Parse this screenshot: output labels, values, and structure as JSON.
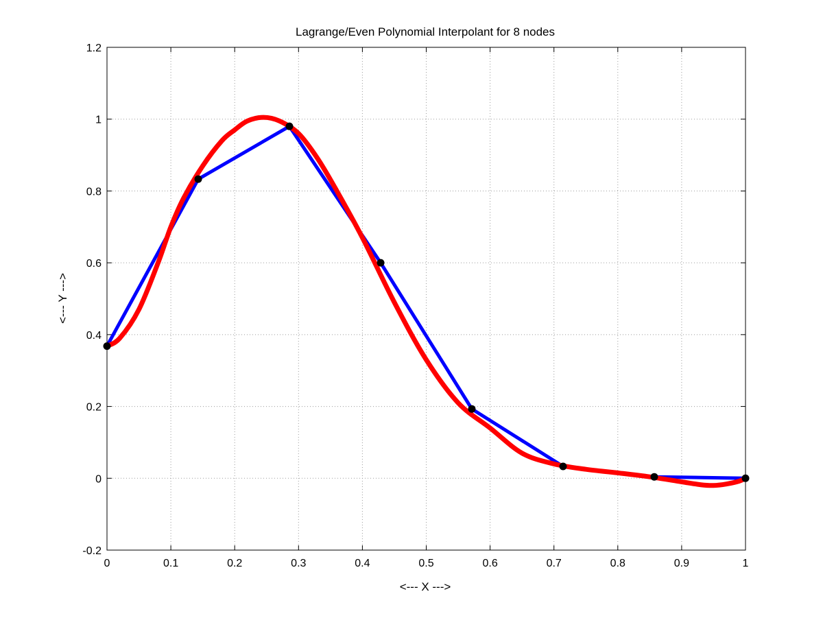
{
  "chart_data": {
    "type": "line",
    "title": "Lagrange/Even Polynomial Interpolant for 8 nodes",
    "xlabel": "<--- X --->",
    "ylabel": "<--- Y --->",
    "xlim": [
      0,
      1
    ],
    "ylim": [
      -0.2,
      1.2
    ],
    "x_ticks": [
      0,
      0.1,
      0.2,
      0.3,
      0.4,
      0.5,
      0.6,
      0.7,
      0.8,
      0.9,
      1
    ],
    "x_tick_labels": [
      "0",
      "0.1",
      "0.2",
      "0.3",
      "0.4",
      "0.5",
      "0.6",
      "0.7",
      "0.8",
      "0.9",
      "1"
    ],
    "y_ticks": [
      -0.2,
      0,
      0.2,
      0.4,
      0.6,
      0.8,
      1,
      1.2
    ],
    "y_tick_labels": [
      "-0.2",
      "0",
      "0.2",
      "0.4",
      "0.6",
      "0.8",
      "1",
      "1.2"
    ],
    "grid": true,
    "colors": {
      "linear": "#0000ff",
      "polynomial": "#ff0000",
      "nodes": "#000000",
      "grid": "#9a9a9a"
    },
    "nodes": {
      "x": [
        0,
        0.1429,
        0.2857,
        0.4286,
        0.5714,
        0.7143,
        0.8571,
        1.0
      ],
      "y": [
        0.368,
        0.833,
        0.98,
        0.6,
        0.193,
        0.033,
        0.004,
        0.0
      ]
    },
    "series": [
      {
        "x": [
          0,
          0.1429,
          0.2857,
          0.4286,
          0.5714,
          0.7143,
          0.8571,
          1.0
        ],
        "y": [
          0.368,
          0.833,
          0.98,
          0.6,
          0.193,
          0.033,
          0.004,
          0.0
        ]
      },
      {
        "x": [
          0,
          0.02,
          0.05,
          0.08,
          0.1,
          0.12,
          0.15,
          0.18,
          0.2,
          0.22,
          0.245,
          0.27,
          0.3,
          0.33,
          0.36,
          0.4,
          0.45,
          0.5,
          0.55,
          0.6,
          0.65,
          0.7,
          0.75,
          0.8,
          0.85,
          0.9,
          0.93,
          0.95,
          0.97,
          0.99,
          1.0
        ],
        "y": [
          0.368,
          0.39,
          0.47,
          0.6,
          0.7,
          0.78,
          0.87,
          0.94,
          0.97,
          0.995,
          1.005,
          0.995,
          0.96,
          0.89,
          0.8,
          0.67,
          0.49,
          0.33,
          0.21,
          0.14,
          0.07,
          0.04,
          0.025,
          0.015,
          0.004,
          -0.01,
          -0.018,
          -0.02,
          -0.016,
          -0.008,
          0.0
        ]
      }
    ]
  }
}
